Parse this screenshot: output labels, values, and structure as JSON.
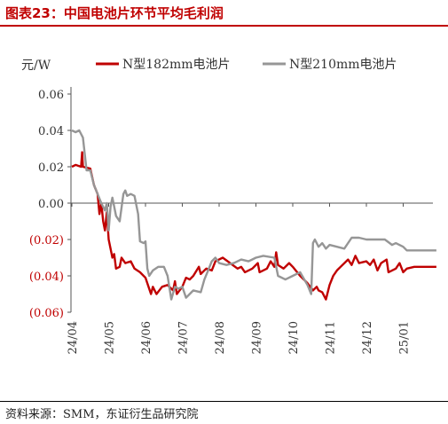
{
  "figure_title": "图表23：中国电池片环节平均毛利润",
  "source_note": "资料来源：SMM，东证衍生品研究院",
  "chart_data": {
    "type": "line",
    "unit_label": "元/W",
    "y_ticks": [
      {
        "value": 0.06,
        "label": "0.06"
      },
      {
        "value": 0.04,
        "label": "0.04"
      },
      {
        "value": 0.02,
        "label": "0.02"
      },
      {
        "value": 0.0,
        "label": "0.00"
      },
      {
        "value": -0.02,
        "label": "(0.02)"
      },
      {
        "value": -0.04,
        "label": "(0.04)"
      },
      {
        "value": -0.06,
        "label": "(0.06)"
      }
    ],
    "ylim": [
      -0.06,
      0.06
    ],
    "x_ticks": [
      "24/04",
      "24/05",
      "24/06",
      "24/07",
      "24/08",
      "24/09",
      "24/10",
      "24/11",
      "24/12",
      "25/01"
    ],
    "x_range": [
      0,
      10
    ],
    "legend_position": "top",
    "grid": false,
    "series": [
      {
        "name": "N型182mm电池片",
        "color": "#c00000",
        "points": [
          [
            0,
            0.02
          ],
          [
            0.1,
            0.021
          ],
          [
            0.25,
            0.02
          ],
          [
            0.28,
            0.028
          ],
          [
            0.3,
            0.02
          ],
          [
            0.5,
            0.019
          ],
          [
            0.6,
            0.01
          ],
          [
            0.7,
            0.005
          ],
          [
            0.75,
            -0.006
          ],
          [
            0.8,
            0.0
          ],
          [
            0.85,
            -0.01
          ],
          [
            0.9,
            -0.015
          ],
          [
            0.95,
            -0.005
          ],
          [
            1.0,
            -0.02
          ],
          [
            1.05,
            -0.025
          ],
          [
            1.1,
            -0.03
          ],
          [
            1.15,
            -0.028
          ],
          [
            1.2,
            -0.036
          ],
          [
            1.3,
            -0.035
          ],
          [
            1.35,
            -0.03
          ],
          [
            1.45,
            -0.033
          ],
          [
            1.6,
            -0.032
          ],
          [
            1.7,
            -0.036
          ],
          [
            1.85,
            -0.038
          ],
          [
            2.0,
            -0.041
          ],
          [
            2.15,
            -0.05
          ],
          [
            2.2,
            -0.046
          ],
          [
            2.3,
            -0.05
          ],
          [
            2.45,
            -0.046
          ],
          [
            2.6,
            -0.045
          ],
          [
            2.75,
            -0.048
          ],
          [
            2.8,
            -0.043
          ],
          [
            2.85,
            -0.05
          ],
          [
            3.0,
            -0.046
          ],
          [
            3.1,
            -0.041
          ],
          [
            3.2,
            -0.042
          ],
          [
            3.3,
            -0.04
          ],
          [
            3.45,
            -0.035
          ],
          [
            3.5,
            -0.039
          ],
          [
            3.65,
            -0.036
          ],
          [
            3.8,
            -0.037
          ],
          [
            3.9,
            -0.032
          ],
          [
            4.1,
            -0.03
          ],
          [
            4.3,
            -0.033
          ],
          [
            4.5,
            -0.036
          ],
          [
            4.6,
            -0.035
          ],
          [
            4.7,
            -0.038
          ],
          [
            4.9,
            -0.036
          ],
          [
            5.05,
            -0.033
          ],
          [
            5.1,
            -0.038
          ],
          [
            5.3,
            -0.036
          ],
          [
            5.4,
            -0.032
          ],
          [
            5.5,
            -0.035
          ],
          [
            5.55,
            -0.027
          ],
          [
            5.6,
            -0.034
          ],
          [
            5.75,
            -0.036
          ],
          [
            5.9,
            -0.033
          ],
          [
            6.0,
            -0.035
          ],
          [
            6.2,
            -0.04
          ],
          [
            6.4,
            -0.044
          ],
          [
            6.55,
            -0.048
          ],
          [
            6.65,
            -0.046
          ],
          [
            6.7,
            -0.048
          ],
          [
            6.8,
            -0.049
          ],
          [
            6.9,
            -0.053
          ],
          [
            7.0,
            -0.045
          ],
          [
            7.1,
            -0.04
          ],
          [
            7.2,
            -0.037
          ],
          [
            7.3,
            -0.035
          ],
          [
            7.5,
            -0.031
          ],
          [
            7.6,
            -0.034
          ],
          [
            7.7,
            -0.029
          ],
          [
            7.8,
            -0.033
          ],
          [
            8.0,
            -0.032
          ],
          [
            8.1,
            -0.034
          ],
          [
            8.2,
            -0.031
          ],
          [
            8.3,
            -0.037
          ],
          [
            8.4,
            -0.033
          ],
          [
            8.55,
            -0.031
          ],
          [
            8.6,
            -0.038
          ],
          [
            8.8,
            -0.036
          ],
          [
            8.9,
            -0.033
          ],
          [
            9.0,
            -0.038
          ],
          [
            9.1,
            -0.036
          ],
          [
            9.3,
            -0.035
          ],
          [
            9.5,
            -0.035
          ],
          [
            9.9,
            -0.035
          ]
        ]
      },
      {
        "name": "N型210mm电池片",
        "color": "#969696",
        "points": [
          [
            0,
            0.04
          ],
          [
            0.1,
            0.039
          ],
          [
            0.2,
            0.04
          ],
          [
            0.3,
            0.036
          ],
          [
            0.4,
            0.018
          ],
          [
            0.5,
            0.018
          ],
          [
            0.6,
            0.01
          ],
          [
            0.7,
            0.005
          ],
          [
            0.8,
            0.0
          ],
          [
            0.9,
            -0.004
          ],
          [
            0.95,
            0.0
          ],
          [
            1.0,
            -0.015
          ],
          [
            1.05,
            -0.002
          ],
          [
            1.1,
            0.003
          ],
          [
            1.2,
            -0.007
          ],
          [
            1.3,
            -0.01
          ],
          [
            1.4,
            0.005
          ],
          [
            1.45,
            0.007
          ],
          [
            1.5,
            0.004
          ],
          [
            1.6,
            0.005
          ],
          [
            1.7,
            0.004
          ],
          [
            1.8,
            -0.006
          ],
          [
            1.85,
            -0.021
          ],
          [
            1.95,
            -0.022
          ],
          [
            2.0,
            -0.021
          ],
          [
            2.05,
            -0.036
          ],
          [
            2.1,
            -0.04
          ],
          [
            2.2,
            -0.037
          ],
          [
            2.35,
            -0.035
          ],
          [
            2.5,
            -0.035
          ],
          [
            2.6,
            -0.04
          ],
          [
            2.7,
            -0.053
          ],
          [
            2.8,
            -0.046
          ],
          [
            2.9,
            -0.047
          ],
          [
            3.0,
            -0.046
          ],
          [
            3.1,
            -0.052
          ],
          [
            3.2,
            -0.05
          ],
          [
            3.3,
            -0.048
          ],
          [
            3.5,
            -0.049
          ],
          [
            3.6,
            -0.042
          ],
          [
            3.7,
            -0.037
          ],
          [
            3.8,
            -0.032
          ],
          [
            3.9,
            -0.03
          ],
          [
            4.0,
            -0.033
          ],
          [
            4.2,
            -0.034
          ],
          [
            4.4,
            -0.033
          ],
          [
            4.6,
            -0.031
          ],
          [
            4.8,
            -0.032
          ],
          [
            5.0,
            -0.03
          ],
          [
            5.2,
            -0.029
          ],
          [
            5.5,
            -0.03
          ],
          [
            5.6,
            -0.04
          ],
          [
            5.8,
            -0.042
          ],
          [
            6.0,
            -0.04
          ],
          [
            6.2,
            -0.038
          ],
          [
            6.4,
            -0.045
          ],
          [
            6.5,
            -0.05
          ],
          [
            6.55,
            -0.022
          ],
          [
            6.6,
            -0.02
          ],
          [
            6.7,
            -0.024
          ],
          [
            6.8,
            -0.022
          ],
          [
            6.9,
            -0.025
          ],
          [
            7.0,
            -0.023
          ],
          [
            7.2,
            -0.024
          ],
          [
            7.4,
            -0.025
          ],
          [
            7.6,
            -0.019
          ],
          [
            7.8,
            -0.019
          ],
          [
            8.0,
            -0.02
          ],
          [
            8.3,
            -0.02
          ],
          [
            8.5,
            -0.02
          ],
          [
            8.7,
            -0.023
          ],
          [
            8.8,
            -0.022
          ],
          [
            9.0,
            -0.024
          ],
          [
            9.1,
            -0.026
          ],
          [
            9.3,
            -0.026
          ],
          [
            9.5,
            -0.026
          ],
          [
            9.9,
            -0.026
          ]
        ]
      }
    ]
  }
}
